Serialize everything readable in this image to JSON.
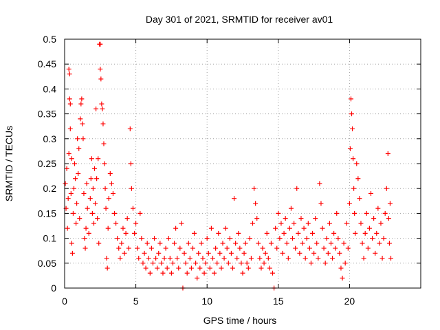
{
  "chart_data": {
    "type": "scatter",
    "title": "Day 301 of 2021, SRMTID for receiver av01",
    "xlabel": "GPS time / hours",
    "ylabel": "SRMTID / TECUs",
    "xlim": [
      0,
      25
    ],
    "ylim": [
      0,
      0.5
    ],
    "xticks": [
      0,
      5,
      10,
      15,
      20
    ],
    "xtick_labels": [
      "0",
      "5",
      "10",
      "15",
      "20"
    ],
    "yticks": [
      0,
      0.05,
      0.1,
      0.15,
      0.2,
      0.25,
      0.3,
      0.35,
      0.4,
      0.45,
      0.5
    ],
    "ytick_labels": [
      "0",
      "0.05",
      "0.1",
      "0.15",
      "0.2",
      "0.25",
      "0.3",
      "0.35",
      "0.4",
      "0.45",
      "0.5"
    ],
    "grid": true,
    "marker": "+",
    "color": "#ff0000",
    "series": [
      {
        "name": "SRMTID",
        "points": [
          [
            0.05,
            0.21
          ],
          [
            0.1,
            0.16
          ],
          [
            0.15,
            0.24
          ],
          [
            0.2,
            0.12
          ],
          [
            0.25,
            0.18
          ],
          [
            0.3,
            0.27
          ],
          [
            0.3,
            0.44
          ],
          [
            0.35,
            0.43
          ],
          [
            0.35,
            0.38
          ],
          [
            0.4,
            0.37
          ],
          [
            0.4,
            0.32
          ],
          [
            0.45,
            0.19
          ],
          [
            0.5,
            0.26
          ],
          [
            0.5,
            0.09
          ],
          [
            0.55,
            0.07
          ],
          [
            0.6,
            0.15
          ],
          [
            0.65,
            0.2
          ],
          [
            0.7,
            0.25
          ],
          [
            0.75,
            0.22
          ],
          [
            0.8,
            0.13
          ],
          [
            0.85,
            0.17
          ],
          [
            0.9,
            0.3
          ],
          [
            0.95,
            0.23
          ],
          [
            1.0,
            0.28
          ],
          [
            1.05,
            0.14
          ],
          [
            1.1,
            0.34
          ],
          [
            1.15,
            0.37
          ],
          [
            1.2,
            0.38
          ],
          [
            1.25,
            0.33
          ],
          [
            1.3,
            0.3
          ],
          [
            1.35,
            0.19
          ],
          [
            1.4,
            0.1
          ],
          [
            1.45,
            0.08
          ],
          [
            1.5,
            0.12
          ],
          [
            1.55,
            0.21
          ],
          [
            1.6,
            0.16
          ],
          [
            1.7,
            0.11
          ],
          [
            1.8,
            0.18
          ],
          [
            1.85,
            0.22
          ],
          [
            1.9,
            0.26
          ],
          [
            1.95,
            0.15
          ],
          [
            2.0,
            0.2
          ],
          [
            2.05,
            0.13
          ],
          [
            2.1,
            0.24
          ],
          [
            2.15,
            0.17
          ],
          [
            2.2,
            0.36
          ],
          [
            2.25,
            0.22
          ],
          [
            2.3,
            0.14
          ],
          [
            2.35,
            0.26
          ],
          [
            2.4,
            0.09
          ],
          [
            2.45,
            0.49
          ],
          [
            2.5,
            0.49
          ],
          [
            2.5,
            0.44
          ],
          [
            2.55,
            0.42
          ],
          [
            2.6,
            0.37
          ],
          [
            2.65,
            0.36
          ],
          [
            2.7,
            0.33
          ],
          [
            2.75,
            0.29
          ],
          [
            2.8,
            0.25
          ],
          [
            2.85,
            0.2
          ],
          [
            2.9,
            0.16
          ],
          [
            2.95,
            0.06
          ],
          [
            3.0,
            0.04
          ],
          [
            3.05,
            0.12
          ],
          [
            3.1,
            0.18
          ],
          [
            3.2,
            0.23
          ],
          [
            3.3,
            0.21
          ],
          [
            3.4,
            0.19
          ],
          [
            3.5,
            0.15
          ],
          [
            3.6,
            0.13
          ],
          [
            3.7,
            0.1
          ],
          [
            3.8,
            0.08
          ],
          [
            3.9,
            0.06
          ],
          [
            4.0,
            0.09
          ],
          [
            4.1,
            0.12
          ],
          [
            4.2,
            0.07
          ],
          [
            4.3,
            0.11
          ],
          [
            4.4,
            0.14
          ],
          [
            4.5,
            0.08
          ],
          [
            4.6,
            0.32
          ],
          [
            4.65,
            0.25
          ],
          [
            4.7,
            0.2
          ],
          [
            4.8,
            0.16
          ],
          [
            4.9,
            0.11
          ],
          [
            5.0,
            0.13
          ],
          [
            5.1,
            0.08
          ],
          [
            5.2,
            0.06
          ],
          [
            5.3,
            0.15
          ],
          [
            5.4,
            0.1
          ],
          [
            5.5,
            0.05
          ],
          [
            5.6,
            0.07
          ],
          [
            5.7,
            0.04
          ],
          [
            5.8,
            0.09
          ],
          [
            5.9,
            0.06
          ],
          [
            6.0,
            0.03
          ],
          [
            6.1,
            0.08
          ],
          [
            6.2,
            0.05
          ],
          [
            6.3,
            0.1
          ],
          [
            6.4,
            0.06
          ],
          [
            6.5,
            0.04
          ],
          [
            6.6,
            0.07
          ],
          [
            6.7,
            0.09
          ],
          [
            6.8,
            0.05
          ],
          [
            6.9,
            0.03
          ],
          [
            7.0,
            0.06
          ],
          [
            7.1,
            0.08
          ],
          [
            7.2,
            0.04
          ],
          [
            7.3,
            0.1
          ],
          [
            7.4,
            0.06
          ],
          [
            7.5,
            0.03
          ],
          [
            7.6,
            0.05
          ],
          [
            7.7,
            0.09
          ],
          [
            7.8,
            0.12
          ],
          [
            7.9,
            0.06
          ],
          [
            8.0,
            0.04
          ],
          [
            8.1,
            0.08
          ],
          [
            8.2,
            0.13
          ],
          [
            8.3,
            0.0
          ],
          [
            8.4,
            0.07
          ],
          [
            8.5,
            0.05
          ],
          [
            8.6,
            0.03
          ],
          [
            8.7,
            0.09
          ],
          [
            8.8,
            0.06
          ],
          [
            8.9,
            0.04
          ],
          [
            9.0,
            0.08
          ],
          [
            9.1,
            0.11
          ],
          [
            9.2,
            0.05
          ],
          [
            9.3,
            0.02
          ],
          [
            9.4,
            0.07
          ],
          [
            9.5,
            0.04
          ],
          [
            9.6,
            0.09
          ],
          [
            9.7,
            0.06
          ],
          [
            9.8,
            0.03
          ],
          [
            9.9,
            0.05
          ],
          [
            10.0,
            0.1
          ],
          [
            10.1,
            0.07
          ],
          [
            10.2,
            0.04
          ],
          [
            10.3,
            0.12
          ],
          [
            10.4,
            0.06
          ],
          [
            10.5,
            0.03
          ],
          [
            10.6,
            0.08
          ],
          [
            10.7,
            0.05
          ],
          [
            10.8,
            0.11
          ],
          [
            10.9,
            0.07
          ],
          [
            11.0,
            0.04
          ],
          [
            11.1,
            0.09
          ],
          [
            11.2,
            0.06
          ],
          [
            11.3,
            0.12
          ],
          [
            11.4,
            0.08
          ],
          [
            11.5,
            0.05
          ],
          [
            11.6,
            0.1
          ],
          [
            11.7,
            0.07
          ],
          [
            11.8,
            0.04
          ],
          [
            11.9,
            0.18
          ],
          [
            12.0,
            0.09
          ],
          [
            12.1,
            0.06
          ],
          [
            12.2,
            0.11
          ],
          [
            12.3,
            0.08
          ],
          [
            12.4,
            0.05
          ],
          [
            12.5,
            0.03
          ],
          [
            12.6,
            0.07
          ],
          [
            12.7,
            0.09
          ],
          [
            12.8,
            0.05
          ],
          [
            12.9,
            0.04
          ],
          [
            13.0,
            0.1
          ],
          [
            13.1,
            0.06
          ],
          [
            13.2,
            0.13
          ],
          [
            13.3,
            0.2
          ],
          [
            13.4,
            0.17
          ],
          [
            13.5,
            0.14
          ],
          [
            13.6,
            0.09
          ],
          [
            13.7,
            0.06
          ],
          [
            13.8,
            0.04
          ],
          [
            13.9,
            0.08
          ],
          [
            14.0,
            0.05
          ],
          [
            14.1,
            0.07
          ],
          [
            14.2,
            0.11
          ],
          [
            14.3,
            0.06
          ],
          [
            14.4,
            0.04
          ],
          [
            14.5,
            0.09
          ],
          [
            14.6,
            0.03
          ],
          [
            14.7,
            0.0
          ],
          [
            14.8,
            0.12
          ],
          [
            14.9,
            0.08
          ],
          [
            15.0,
            0.15
          ],
          [
            15.1,
            0.1
          ],
          [
            15.2,
            0.13
          ],
          [
            15.3,
            0.07
          ],
          [
            15.4,
            0.11
          ],
          [
            15.5,
            0.14
          ],
          [
            15.6,
            0.09
          ],
          [
            15.7,
            0.06
          ],
          [
            15.8,
            0.12
          ],
          [
            15.9,
            0.16
          ],
          [
            16.0,
            0.1
          ],
          [
            16.1,
            0.13
          ],
          [
            16.2,
            0.08
          ],
          [
            16.3,
            0.2
          ],
          [
            16.4,
            0.11
          ],
          [
            16.5,
            0.07
          ],
          [
            16.6,
            0.14
          ],
          [
            16.7,
            0.09
          ],
          [
            16.8,
            0.12
          ],
          [
            16.9,
            0.06
          ],
          [
            17.0,
            0.1
          ],
          [
            17.1,
            0.13
          ],
          [
            17.2,
            0.08
          ],
          [
            17.3,
            0.05
          ],
          [
            17.4,
            0.11
          ],
          [
            17.5,
            0.07
          ],
          [
            17.6,
            0.14
          ],
          [
            17.7,
            0.09
          ],
          [
            17.8,
            0.06
          ],
          [
            17.9,
            0.21
          ],
          [
            18.0,
            0.17
          ],
          [
            18.1,
            0.12
          ],
          [
            18.2,
            0.08
          ],
          [
            18.3,
            0.05
          ],
          [
            18.4,
            0.1
          ],
          [
            18.5,
            0.07
          ],
          [
            18.6,
            0.13
          ],
          [
            18.7,
            0.09
          ],
          [
            18.8,
            0.06
          ],
          [
            18.9,
            0.11
          ],
          [
            19.0,
            0.08
          ],
          [
            19.1,
            0.15
          ],
          [
            19.2,
            0.1
          ],
          [
            19.3,
            0.07
          ],
          [
            19.4,
            0.04
          ],
          [
            19.5,
            0.02
          ],
          [
            19.6,
            0.09
          ],
          [
            19.7,
            0.05
          ],
          [
            19.8,
            0.13
          ],
          [
            19.9,
            0.08
          ],
          [
            20.0,
            0.17
          ],
          [
            20.05,
            0.28
          ],
          [
            20.1,
            0.38
          ],
          [
            20.15,
            0.35
          ],
          [
            20.2,
            0.32
          ],
          [
            20.25,
            0.26
          ],
          [
            20.3,
            0.2
          ],
          [
            20.35,
            0.15
          ],
          [
            20.4,
            0.11
          ],
          [
            20.5,
            0.25
          ],
          [
            20.6,
            0.22
          ],
          [
            20.7,
            0.18
          ],
          [
            20.8,
            0.13
          ],
          [
            20.9,
            0.09
          ],
          [
            21.0,
            0.06
          ],
          [
            21.1,
            0.11
          ],
          [
            21.2,
            0.15
          ],
          [
            21.3,
            0.08
          ],
          [
            21.4,
            0.12
          ],
          [
            21.5,
            0.19
          ],
          [
            21.6,
            0.1
          ],
          [
            21.7,
            0.14
          ],
          [
            21.8,
            0.07
          ],
          [
            21.9,
            0.11
          ],
          [
            22.0,
            0.16
          ],
          [
            22.1,
            0.09
          ],
          [
            22.2,
            0.13
          ],
          [
            22.3,
            0.06
          ],
          [
            22.4,
            0.1
          ],
          [
            22.5,
            0.15
          ],
          [
            22.6,
            0.2
          ],
          [
            22.7,
            0.27
          ],
          [
            22.75,
            0.14
          ],
          [
            22.8,
            0.09
          ],
          [
            22.85,
            0.17
          ],
          [
            22.9,
            0.06
          ]
        ]
      }
    ]
  }
}
